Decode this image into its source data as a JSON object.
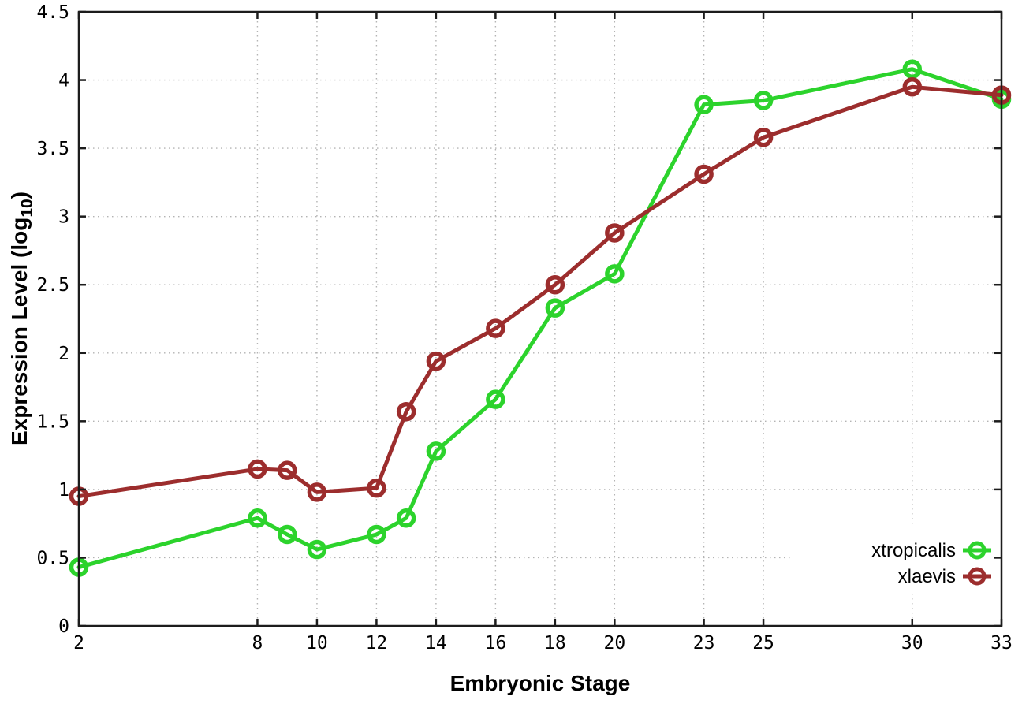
{
  "chart_data": {
    "type": "line",
    "title": "",
    "xlabel": "Embryonic Stage",
    "ylabel": "Expression Level (log10)",
    "ylabel_parts": {
      "pre": "Expression Level (log",
      "sub": "10",
      "post": ")"
    },
    "xlim": [
      2,
      33
    ],
    "ylim": [
      0,
      4.5
    ],
    "x_ticks": [
      2,
      8,
      10,
      12,
      14,
      16,
      18,
      20,
      23,
      25,
      30,
      33
    ],
    "x_tick_labels": [
      "2",
      "8",
      "10",
      "12",
      "14",
      "16",
      "18",
      "20",
      "23",
      "25",
      "30",
      "33"
    ],
    "y_ticks": [
      0,
      0.5,
      1,
      1.5,
      2,
      2.5,
      3,
      3.5,
      4,
      4.5
    ],
    "y_tick_labels": [
      "0",
      "0.5",
      "1",
      "1.5",
      "2",
      "2.5",
      "3",
      "3.5",
      "4",
      "4.5"
    ],
    "grid": "dotted",
    "marker": "open-circle",
    "legend": {
      "position": "inside-bottom-right",
      "entries": [
        "xtropicalis",
        "xlaevis"
      ]
    },
    "x": [
      2,
      8,
      9,
      10,
      12,
      13,
      14,
      16,
      18,
      20,
      23,
      25,
      30,
      33
    ],
    "series": [
      {
        "name": "xtropicalis",
        "color": "#2cd32c",
        "values": [
          0.43,
          0.79,
          0.67,
          0.56,
          0.67,
          0.79,
          1.28,
          1.66,
          2.33,
          2.58,
          3.82,
          3.85,
          4.08,
          3.86
        ]
      },
      {
        "name": "xlaevis",
        "color": "#9c2d2d",
        "values": [
          0.95,
          1.15,
          1.14,
          0.98,
          1.01,
          1.57,
          1.94,
          2.18,
          2.5,
          2.88,
          3.31,
          3.58,
          3.95,
          3.89
        ]
      }
    ],
    "colors": {
      "grid": "#b3b3b3",
      "axis": "#1c1c1c",
      "text": "#000000",
      "background": "#ffffff"
    }
  }
}
